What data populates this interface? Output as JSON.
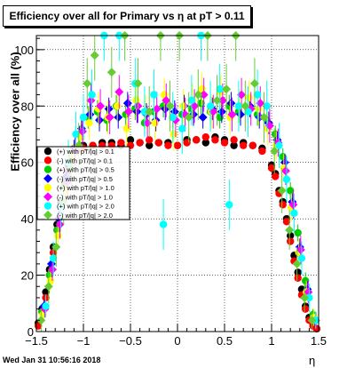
{
  "chart_data": {
    "type": "scatter",
    "title": "Efficiency over all for Primary vs   η at pT > 0.11",
    "xlabel": "η",
    "ylabel": "Efficiency over all (%)",
    "xlim": [
      -1.5,
      1.5
    ],
    "ylim": [
      0,
      105
    ],
    "xticks": [
      -1.5,
      -1,
      -0.5,
      0,
      0.5,
      1,
      1.5
    ],
    "xtick_labels": [
      "−1.5",
      "−1",
      "−0.5",
      "0",
      "0.5",
      "1",
      "1.5"
    ],
    "yticks": [
      0,
      20,
      40,
      60,
      80,
      100
    ],
    "ytick_labels": [
      "0",
      "20",
      "40",
      "60",
      "80",
      "100"
    ],
    "grid": true,
    "legend_position": "left",
    "timestamp": "Wed Jan 31 10:56:16 2018",
    "series": [
      {
        "name": "(+) with pT/|q| > 0.1",
        "color": "#000000",
        "marker": "circle",
        "x": [
          -1.48,
          -1.44,
          -1.4,
          -1.36,
          -1.32,
          -1.28,
          -1.24,
          -1.2,
          -1.16,
          -1.12,
          -1.08,
          -1.04,
          -1.0,
          -0.9,
          -0.8,
          -0.7,
          -0.6,
          -0.5,
          -0.4,
          -0.3,
          -0.2,
          -0.1,
          0.0,
          0.1,
          0.2,
          0.3,
          0.4,
          0.5,
          0.6,
          0.7,
          0.8,
          0.9,
          1.0,
          1.04,
          1.08,
          1.12,
          1.16,
          1.2,
          1.24,
          1.28,
          1.32,
          1.36,
          1.4,
          1.44,
          1.48
        ],
        "y": [
          3,
          8,
          14,
          22,
          30,
          38,
          46,
          53,
          59,
          63,
          65,
          66,
          66,
          66,
          67,
          67,
          66,
          68,
          67,
          66,
          67,
          67,
          66,
          68,
          68,
          67,
          69,
          68,
          66,
          67,
          66,
          65,
          59,
          56,
          50,
          46,
          40,
          34,
          27,
          21,
          15,
          9,
          5,
          3,
          1
        ]
      },
      {
        "name": "(-) with pT/|q| > 0.1",
        "color": "#ff0000",
        "marker": "circle",
        "x": [
          -1.48,
          -1.44,
          -1.4,
          -1.36,
          -1.32,
          -1.28,
          -1.24,
          -1.2,
          -1.16,
          -1.12,
          -1.08,
          -1.04,
          -1.0,
          -0.9,
          -0.8,
          -0.7,
          -0.6,
          -0.5,
          -0.4,
          -0.3,
          -0.2,
          -0.1,
          0.0,
          0.1,
          0.2,
          0.3,
          0.4,
          0.5,
          0.6,
          0.7,
          0.8,
          0.9,
          1.0,
          1.04,
          1.08,
          1.12,
          1.16,
          1.2,
          1.24,
          1.28,
          1.32,
          1.36,
          1.4,
          1.44,
          1.48
        ],
        "y": [
          2,
          7,
          12,
          20,
          28,
          36,
          44,
          51,
          57,
          62,
          64,
          65,
          65,
          66,
          66,
          66,
          67,
          66,
          67,
          68,
          67,
          66,
          66,
          67,
          68,
          69,
          68,
          67,
          68,
          66,
          66,
          64,
          58,
          55,
          49,
          45,
          39,
          32,
          25,
          19,
          13,
          8,
          4,
          2,
          1
        ]
      },
      {
        "name": "(+) with pT/|q| > 0.5",
        "color": "#00cc00",
        "marker": "circle",
        "x": [
          -1.44,
          -1.36,
          -1.28,
          -1.2,
          -1.12,
          -1.04,
          -0.95,
          -0.85,
          -0.75,
          -0.65,
          -0.55,
          -0.45,
          -0.35,
          -0.25,
          -0.15,
          -0.05,
          0.05,
          0.15,
          0.25,
          0.35,
          0.45,
          0.55,
          0.65,
          0.75,
          0.85,
          0.95,
          1.04,
          1.12,
          1.2,
          1.28,
          1.36,
          1.44
        ],
        "y": [
          7,
          20,
          36,
          52,
          63,
          70,
          76,
          78,
          75,
          80,
          77,
          79,
          74,
          78,
          80,
          76,
          77,
          79,
          81,
          78,
          76,
          80,
          78,
          79,
          77,
          75,
          70,
          62,
          50,
          35,
          18,
          6
        ],
        "err": [
          2,
          3,
          3,
          3,
          3,
          3,
          4,
          4,
          4,
          4,
          4,
          4,
          4,
          4,
          4,
          4,
          4,
          4,
          4,
          4,
          4,
          4,
          4,
          4,
          4,
          4,
          3,
          3,
          3,
          3,
          3,
          2
        ]
      },
      {
        "name": "(-) with pT/|q| > 0.5",
        "color": "#0000ff",
        "marker": "diamond",
        "x": [
          -1.42,
          -1.34,
          -1.26,
          -1.18,
          -1.1,
          -1.02,
          -0.93,
          -0.83,
          -0.73,
          -0.63,
          -0.53,
          -0.43,
          -0.33,
          -0.23,
          -0.13,
          -0.03,
          0.07,
          0.17,
          0.27,
          0.37,
          0.47,
          0.57,
          0.67,
          0.77,
          0.87,
          0.97,
          1.06,
          1.14,
          1.22,
          1.3,
          1.38,
          1.46
        ],
        "y": [
          9,
          24,
          40,
          55,
          65,
          72,
          77,
          75,
          79,
          76,
          81,
          78,
          77,
          75,
          79,
          78,
          80,
          77,
          76,
          79,
          78,
          81,
          77,
          80,
          76,
          74,
          68,
          60,
          46,
          30,
          15,
          4
        ],
        "err": [
          2,
          3,
          3,
          3,
          3,
          3,
          4,
          4,
          4,
          4,
          4,
          4,
          4,
          4,
          4,
          4,
          4,
          4,
          4,
          4,
          4,
          4,
          4,
          4,
          4,
          4,
          3,
          3,
          3,
          3,
          3,
          2
        ]
      },
      {
        "name": "(+) with pT/|q| > 1.0",
        "color": "#ffff00",
        "marker": "circle",
        "x": [
          -1.43,
          -1.35,
          -1.27,
          -1.19,
          -1.11,
          -1.03,
          -0.94,
          -0.84,
          -0.74,
          -0.64,
          -0.54,
          -0.44,
          -0.34,
          -0.24,
          -0.14,
          -0.04,
          0.06,
          0.16,
          0.26,
          0.36,
          0.46,
          0.56,
          0.66,
          0.76,
          0.86,
          0.96,
          1.05,
          1.13,
          1.21,
          1.29,
          1.37,
          1.45
        ],
        "y": [
          6,
          18,
          34,
          50,
          62,
          69,
          74,
          79,
          76,
          80,
          72,
          82,
          78,
          74,
          84,
          70,
          80,
          82,
          86,
          78,
          85,
          76,
          80,
          83,
          79,
          72,
          66,
          58,
          44,
          28,
          14,
          5
        ],
        "err": [
          3,
          4,
          5,
          5,
          5,
          5,
          6,
          6,
          6,
          6,
          6,
          6,
          6,
          6,
          6,
          6,
          6,
          6,
          6,
          6,
          6,
          6,
          6,
          6,
          6,
          6,
          5,
          5,
          5,
          5,
          4,
          3
        ]
      },
      {
        "name": "(-) with pT/|q| > 1.0",
        "color": "#ff00ff",
        "marker": "diamond",
        "x": [
          -1.41,
          -1.33,
          -1.25,
          -1.17,
          -1.09,
          -1.01,
          -0.92,
          -0.82,
          -0.72,
          -0.62,
          -0.52,
          -0.42,
          -0.32,
          -0.22,
          -0.12,
          -0.02,
          0.08,
          0.18,
          0.28,
          0.38,
          0.48,
          0.58,
          0.68,
          0.78,
          0.88,
          0.98,
          1.07,
          1.15,
          1.23,
          1.31,
          1.39,
          1.47
        ],
        "y": [
          8,
          22,
          38,
          53,
          64,
          71,
          82,
          80,
          76,
          85,
          78,
          80,
          74,
          79,
          82,
          75,
          77,
          80,
          84,
          78,
          82,
          77,
          84,
          79,
          81,
          73,
          67,
          57,
          45,
          29,
          14,
          4
        ],
        "err": [
          3,
          4,
          5,
          5,
          5,
          5,
          6,
          6,
          6,
          6,
          6,
          6,
          6,
          6,
          6,
          6,
          6,
          6,
          6,
          6,
          6,
          6,
          6,
          6,
          6,
          6,
          5,
          5,
          5,
          5,
          4,
          3
        ]
      },
      {
        "name": "(+) with pT/|q| > 2.0",
        "color": "#00ffff",
        "marker": "circle",
        "x": [
          -1.4,
          -1.32,
          -1.24,
          -1.16,
          -1.08,
          -1.0,
          -0.91,
          -0.78,
          -0.62,
          -0.45,
          -0.35,
          -0.25,
          -0.15,
          -0.05,
          0.05,
          0.15,
          0.25,
          0.35,
          0.45,
          0.55,
          0.65,
          0.75,
          0.85,
          0.95,
          1.08,
          1.16,
          1.24,
          1.32,
          1.4,
          1.47
        ],
        "y": [
          9,
          26,
          44,
          60,
          70,
          76,
          84,
          105,
          105,
          88,
          78,
          84,
          38,
          76,
          72,
          82,
          105,
          80,
          86,
          45,
          80,
          78,
          84,
          80,
          66,
          54,
          42,
          26,
          12,
          4
        ],
        "err": [
          4,
          6,
          7,
          8,
          8,
          8,
          9,
          9,
          9,
          9,
          9,
          9,
          9,
          9,
          9,
          9,
          9,
          9,
          9,
          9,
          9,
          9,
          9,
          9,
          8,
          8,
          7,
          6,
          5,
          3
        ]
      },
      {
        "name": "(-) with pT/|q| > 2.0",
        "color": "#66cc33",
        "marker": "diamond",
        "x": [
          -1.45,
          -1.37,
          -1.29,
          -1.21,
          -1.13,
          -1.05,
          -0.96,
          -0.88,
          -0.7,
          -0.56,
          -0.42,
          -0.3,
          -0.18,
          -0.08,
          0.02,
          0.12,
          0.22,
          0.32,
          0.42,
          0.52,
          0.62,
          0.72,
          0.82,
          0.92,
          1.03,
          1.11,
          1.19,
          1.27,
          1.35,
          1.43
        ],
        "y": [
          4,
          16,
          30,
          46,
          58,
          66,
          88,
          98,
          92,
          105,
          88,
          78,
          105,
          80,
          105,
          76,
          84,
          105,
          82,
          86,
          105,
          80,
          88,
          76,
          64,
          50,
          36,
          24,
          12,
          4
        ],
        "err": [
          4,
          6,
          7,
          8,
          8,
          8,
          9,
          9,
          9,
          9,
          9,
          9,
          9,
          9,
          9,
          9,
          9,
          9,
          9,
          9,
          9,
          9,
          9,
          9,
          8,
          8,
          7,
          6,
          5,
          3
        ]
      }
    ]
  }
}
